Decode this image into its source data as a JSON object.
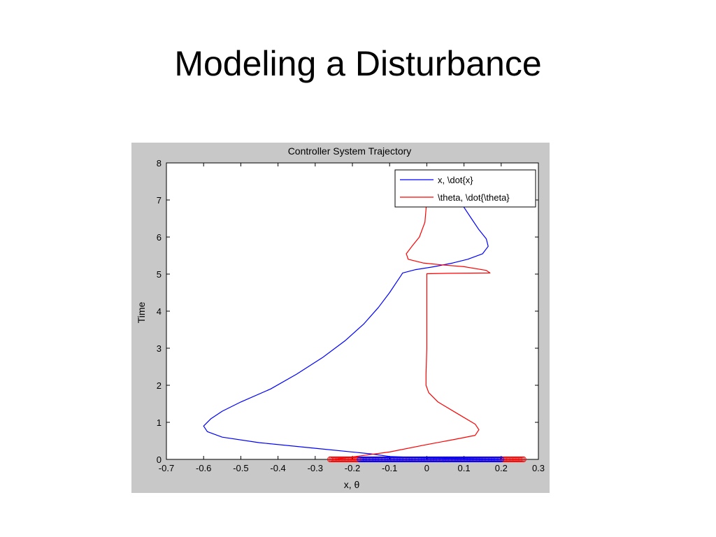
{
  "slide": {
    "title": "Modeling a Disturbance"
  },
  "chart_data": {
    "type": "line",
    "title": "Controller System Trajectory",
    "xlabel": "x, θ",
    "ylabel": "Time",
    "xlim": [
      -0.7,
      0.3
    ],
    "ylim": [
      0,
      8
    ],
    "xticks": [
      "-0.7",
      "-0.6",
      "-0.5",
      "-0.4",
      "-0.3",
      "-0.2",
      "-0.1",
      "0",
      "0.1",
      "0.2",
      "0.3"
    ],
    "yticks": [
      "0",
      "1",
      "2",
      "3",
      "4",
      "5",
      "6",
      "7",
      "8"
    ],
    "grid": false,
    "legend_position": "top-right",
    "series": [
      {
        "name": "x, \\dot{x}",
        "color": "#0000ff",
        "x": [
          0.2,
          0.1,
          0.0,
          -0.1,
          -0.15,
          -0.3,
          -0.45,
          -0.55,
          -0.59,
          -0.6,
          -0.58,
          -0.55,
          -0.5,
          -0.42,
          -0.35,
          -0.28,
          -0.22,
          -0.17,
          -0.13,
          -0.1,
          -0.08,
          -0.07,
          -0.065,
          -0.03,
          0.02,
          0.07,
          0.11,
          0.15,
          0.165,
          0.16,
          0.14,
          0.12,
          0.1,
          0.09
        ],
        "y": [
          0.0,
          0.02,
          0.04,
          0.08,
          0.15,
          0.3,
          0.45,
          0.6,
          0.75,
          0.9,
          1.1,
          1.3,
          1.55,
          1.9,
          2.3,
          2.75,
          3.2,
          3.65,
          4.1,
          4.5,
          4.8,
          4.95,
          5.03,
          5.12,
          5.2,
          5.3,
          5.4,
          5.55,
          5.75,
          5.95,
          6.2,
          6.5,
          6.8,
          7.0
        ]
      },
      {
        "name": "\\theta, \\dot{\\theta}",
        "color": "#ff0000",
        "x": [
          -0.25,
          -0.1,
          0.0,
          0.08,
          0.13,
          0.14,
          0.13,
          0.08,
          0.03,
          0.005,
          -0.002,
          -0.002,
          0.0,
          0.0,
          0.0,
          0.0,
          0.06,
          0.17,
          0.16,
          0.1,
          0.04,
          -0.01,
          -0.05,
          -0.055,
          -0.04,
          -0.02,
          -0.005,
          0.0
        ],
        "y": [
          0.0,
          0.2,
          0.4,
          0.55,
          0.65,
          0.8,
          0.95,
          1.25,
          1.55,
          1.8,
          2.0,
          2.3,
          3.0,
          4.0,
          4.99,
          5.01,
          5.02,
          5.03,
          5.1,
          5.2,
          5.25,
          5.3,
          5.4,
          5.55,
          5.75,
          6.0,
          6.4,
          7.0
        ]
      }
    ],
    "markers": {
      "x_series": {
        "color": "#0000ff",
        "y": 0,
        "x_range": [
          -0.18,
          0.2
        ]
      },
      "theta_series": {
        "color": "#ff0000",
        "y": 0,
        "x_range": [
          -0.26,
          0.26
        ]
      }
    }
  }
}
